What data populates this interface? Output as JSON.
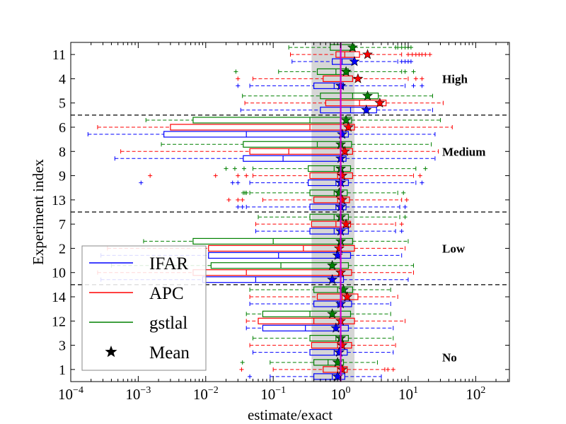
{
  "chart_data": {
    "type": "boxplot",
    "xlabel": "estimate/exact",
    "ylabel": "Experiment index",
    "xscale": "log",
    "xlim": [
      0.0001,
      316
    ],
    "x_tick_labels": [
      {
        "value": 0.0001,
        "base": "10",
        "exp": "−4"
      },
      {
        "value": 0.001,
        "base": "10",
        "exp": "−3"
      },
      {
        "value": 0.01,
        "base": "10",
        "exp": "−2"
      },
      {
        "value": 0.1,
        "base": "10",
        "exp": "−1"
      },
      {
        "value": 1,
        "base": "10",
        "exp": "0"
      },
      {
        "value": 10,
        "base": "10",
        "exp": "1"
      },
      {
        "value": 100,
        "base": "10",
        "exp": "2"
      }
    ],
    "reference_line": 1,
    "shaded_band": [
      0.37,
      1.6
    ],
    "group_separators_after_rows": [
      2,
      6,
      9
    ],
    "group_labels": [
      "High",
      "Medium",
      "Low",
      "No"
    ],
    "group_label_rows": [
      1,
      4,
      8,
      12.5
    ],
    "series": [
      {
        "name": "IFAR",
        "color": "#0000ff"
      },
      {
        "name": "APC",
        "color": "#ff0000"
      },
      {
        "name": "gstlal",
        "color": "#008000"
      }
    ],
    "legend": {
      "position": "lower-left",
      "mean_label": "Mean"
    },
    "experiments": [
      {
        "label": "11",
        "boxes": {
          "gstlal": {
            "wl": 0.17,
            "q1": 0.7,
            "med": 1.0,
            "q3": 1.6,
            "wh": 6.5,
            "mean": 1.5,
            "outliers": [
              7,
              8,
              9,
              10,
              11
            ]
          },
          "APC": {
            "wl": 0.18,
            "q1": 0.85,
            "med": 1.15,
            "q3": 1.9,
            "wh": 8,
            "mean": 2.5,
            "outliers": [
              10,
              11.5,
              13,
              14.5,
              16,
              18,
              21
            ]
          },
          "IFAR": {
            "wl": 0.19,
            "q1": 0.75,
            "med": 1.05,
            "q3": 1.55,
            "wh": 7,
            "mean": 1.6,
            "outliers": [
              8,
              9,
              10,
              11
            ]
          }
        }
      },
      {
        "label": "4",
        "boxes": {
          "gstlal": {
            "wl": 0.12,
            "q1": 0.45,
            "med": 0.85,
            "q3": 1.3,
            "wh": 8,
            "mean": 1.2,
            "outliers": [
              0.028,
              9,
              12
            ]
          },
          "APC": {
            "wl": 0.05,
            "q1": 0.55,
            "med": 1.0,
            "q3": 1.5,
            "wh": 10,
            "mean": 1.8,
            "outliers": [
              0.03,
              13,
              16
            ]
          },
          "IFAR": {
            "wl": 0.045,
            "q1": 0.4,
            "med": 0.8,
            "q3": 1.1,
            "wh": 9,
            "mean": 1.0,
            "outliers": [
              0.03,
              12,
              16
            ]
          }
        }
      },
      {
        "label": "5",
        "boxes": {
          "gstlal": {
            "wl": 0.035,
            "q1": 0.5,
            "med": 1.5,
            "q3": 3.6,
            "wh": 23,
            "mean": 2.5,
            "outliers": []
          },
          "APC": {
            "wl": 0.038,
            "q1": 0.6,
            "med": 1.9,
            "q3": 4.7,
            "wh": 33,
            "mean": 3.8,
            "outliers": []
          },
          "IFAR": {
            "wl": 0.033,
            "q1": 0.5,
            "med": 1.4,
            "q3": 3.4,
            "wh": 23,
            "mean": 2.4,
            "outliers": []
          }
        }
      },
      {
        "label": "6",
        "boxes": {
          "gstlal": {
            "wl": 0.0013,
            "q1": 0.0065,
            "med": 0.35,
            "q3": 1.45,
            "wh": 30,
            "mean": 1.2,
            "outliers": []
          },
          "APC": {
            "wl": 0.00025,
            "q1": 0.003,
            "med": 0.35,
            "q3": 1.6,
            "wh": 45,
            "mean": 1.3,
            "outliers": []
          },
          "IFAR": {
            "wl": 0.00018,
            "q1": 0.0024,
            "med": 0.04,
            "q3": 1.3,
            "wh": 25,
            "mean": 1.05,
            "outliers": []
          }
        }
      },
      {
        "label": "8",
        "boxes": {
          "gstlal": {
            "wl": 0.0022,
            "q1": 0.036,
            "med": 0.45,
            "q3": 1.45,
            "wh": 22,
            "mean": 1.0,
            "outliers": []
          },
          "APC": {
            "wl": 0.00055,
            "q1": 0.045,
            "med": 0.17,
            "q3": 1.5,
            "wh": 28,
            "mean": 1.15,
            "outliers": []
          },
          "IFAR": {
            "wl": 0.00045,
            "q1": 0.036,
            "med": 0.14,
            "q3": 1.2,
            "wh": 25,
            "mean": 1.0,
            "outliers": []
          }
        }
      },
      {
        "label": "9",
        "boxes": {
          "gstlal": {
            "wl": 0.05,
            "q1": 0.33,
            "med": 0.8,
            "q3": 1.4,
            "wh": 13,
            "mean": 1.0,
            "outliers": [
              0.02,
              0.027,
              0.037,
              18
            ]
          },
          "APC": {
            "wl": 0.05,
            "q1": 0.35,
            "med": 0.9,
            "q3": 1.5,
            "wh": 12,
            "mean": 1.05,
            "outliers": [
              0.0015,
              0.014,
              0.03,
              0.04,
              15
            ]
          },
          "IFAR": {
            "wl": 0.045,
            "q1": 0.33,
            "med": 0.85,
            "q3": 1.3,
            "wh": 13,
            "mean": 1.0,
            "outliers": [
              0.0011,
              0.025,
              0.03,
              16
            ]
          }
        }
      },
      {
        "label": "13",
        "boxes": {
          "gstlal": {
            "wl": 0.045,
            "q1": 0.35,
            "med": 0.8,
            "q3": 1.25,
            "wh": 7,
            "mean": 0.95,
            "outliers": [
              0.036,
              0.038,
              0.04,
              8.5
            ]
          },
          "APC": {
            "wl": 0.07,
            "q1": 0.4,
            "med": 0.9,
            "q3": 1.35,
            "wh": 8,
            "mean": 1.05,
            "outliers": [
              0.022,
              0.03,
              0.035,
              9.5
            ]
          },
          "IFAR": {
            "wl": 0.04,
            "q1": 0.35,
            "med": 0.85,
            "q3": 1.2,
            "wh": 7.5,
            "mean": 1.0,
            "outliers": [
              0.03,
              0.035,
              9
            ]
          }
        }
      },
      {
        "label": "7",
        "boxes": {
          "gstlal": {
            "wl": 0.06,
            "q1": 0.35,
            "med": 0.8,
            "q3": 1.3,
            "wh": 7.5,
            "mean": 1.0,
            "outliers": [
              9
            ]
          },
          "APC": {
            "wl": 0.055,
            "q1": 0.37,
            "med": 0.85,
            "q3": 1.4,
            "wh": 6.5,
            "mean": 1.2,
            "outliers": [
              8
            ]
          },
          "IFAR": {
            "wl": 0.055,
            "q1": 0.35,
            "med": 0.8,
            "q3": 1.3,
            "wh": 6.5,
            "mean": 1.0,
            "outliers": [
              8
            ]
          }
        }
      },
      {
        "label": "2",
        "boxes": {
          "gstlal": {
            "wl": 0.0012,
            "q1": 0.0065,
            "med": 0.1,
            "q3": 1.5,
            "wh": 10,
            "mean": 1.0,
            "outliers": []
          },
          "APC": {
            "wl": 0.00035,
            "q1": 0.011,
            "med": 0.28,
            "q3": 1.6,
            "wh": 9,
            "mean": 0.95,
            "outliers": []
          },
          "IFAR": {
            "wl": 0.00028,
            "q1": 0.011,
            "med": 0.12,
            "q3": 1.4,
            "wh": 8,
            "mean": 0.9,
            "outliers": []
          }
        }
      },
      {
        "label": "10",
        "boxes": {
          "gstlal": {
            "wl": 0.0004,
            "q1": 0.012,
            "med": 0.13,
            "q3": 1.3,
            "wh": 12,
            "mean": 0.75,
            "outliers": []
          },
          "APC": {
            "wl": 0.00025,
            "q1": 0.0065,
            "med": 0.04,
            "q3": 1.45,
            "wh": 12,
            "mean": 1.0,
            "outliers": []
          },
          "IFAR": {
            "wl": 0.00028,
            "q1": 0.009,
            "med": 0.055,
            "q3": 1.1,
            "wh": 10,
            "mean": 0.75,
            "outliers": []
          }
        }
      },
      {
        "label": "14",
        "boxes": {
          "gstlal": {
            "wl": 0.045,
            "q1": 0.4,
            "med": 0.9,
            "q3": 1.5,
            "wh": 5.5,
            "mean": 1.1,
            "outliers": []
          },
          "APC": {
            "wl": 0.045,
            "q1": 0.45,
            "med": 1.05,
            "q3": 1.8,
            "wh": 7,
            "mean": 1.25,
            "outliers": []
          },
          "IFAR": {
            "wl": 0.045,
            "q1": 0.4,
            "med": 0.9,
            "q3": 1.45,
            "wh": 5.5,
            "mean": 1.0,
            "outliers": []
          }
        }
      },
      {
        "label": "12",
        "boxes": {
          "gstlal": {
            "wl": 0.04,
            "q1": 0.07,
            "med": 0.35,
            "q3": 1.4,
            "wh": 5.5,
            "mean": 0.75,
            "outliers": []
          },
          "APC": {
            "wl": 0.04,
            "q1": 0.06,
            "med": 0.4,
            "q3": 1.6,
            "wh": 9,
            "mean": 1.0,
            "outliers": []
          },
          "IFAR": {
            "wl": 0.04,
            "q1": 0.07,
            "med": 0.3,
            "q3": 1.3,
            "wh": 6,
            "mean": 0.85,
            "outliers": []
          }
        }
      },
      {
        "label": "3",
        "boxes": {
          "gstlal": {
            "wl": 0.05,
            "q1": 0.35,
            "med": 0.85,
            "q3": 1.3,
            "wh": 6,
            "mean": 1.0,
            "outliers": []
          },
          "APC": {
            "wl": 0.045,
            "q1": 0.37,
            "med": 0.9,
            "q3": 1.45,
            "wh": 6.5,
            "mean": 1.05,
            "outliers": []
          },
          "IFAR": {
            "wl": 0.05,
            "q1": 0.35,
            "med": 0.8,
            "q3": 1.25,
            "wh": 6,
            "mean": 0.95,
            "outliers": []
          }
        }
      },
      {
        "label": "1",
        "boxes": {
          "gstlal": {
            "wl": 0.09,
            "q1": 0.4,
            "med": 0.65,
            "q3": 1.1,
            "wh": 3.5,
            "mean": 0.9,
            "outliers": [
              0.035
            ]
          },
          "APC": {
            "wl": 0.1,
            "q1": 0.55,
            "med": 0.9,
            "q3": 1.25,
            "wh": 4.5,
            "mean": 1.05,
            "outliers": [
              0.034,
              5,
              6
            ]
          },
          "IFAR": {
            "wl": 0.09,
            "q1": 0.4,
            "med": 0.75,
            "q3": 1.15,
            "wh": 4,
            "mean": 0.9,
            "outliers": [
              0.045
            ]
          }
        }
      }
    ]
  }
}
